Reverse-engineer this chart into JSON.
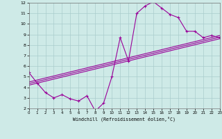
{
  "xlabel": "Windchill (Refroidissement éolien,°C)",
  "background_color": "#ceeae7",
  "grid_color": "#aacccc",
  "line_color": "#990099",
  "xlim": [
    0,
    23
  ],
  "ylim": [
    2,
    12
  ],
  "xticks": [
    0,
    1,
    2,
    3,
    4,
    5,
    6,
    7,
    8,
    9,
    10,
    11,
    12,
    13,
    14,
    15,
    16,
    17,
    18,
    19,
    20,
    21,
    22,
    23
  ],
  "yticks": [
    2,
    3,
    4,
    5,
    6,
    7,
    8,
    9,
    10,
    11,
    12
  ],
  "main_x": [
    0,
    1,
    2,
    3,
    4,
    5,
    6,
    7,
    8,
    9,
    10,
    11,
    12,
    13,
    14,
    15,
    16,
    17,
    18,
    19,
    20,
    21,
    22,
    23
  ],
  "main_y": [
    5.4,
    4.4,
    3.5,
    3.0,
    3.3,
    2.9,
    2.7,
    3.2,
    1.75,
    2.5,
    5.0,
    8.7,
    6.5,
    11.0,
    11.7,
    12.1,
    11.5,
    10.9,
    10.6,
    9.3,
    9.3,
    8.7,
    8.9,
    8.7
  ],
  "line1_x": [
    0,
    23
  ],
  "line1_y": [
    4.2,
    8.6
  ],
  "line2_x": [
    0,
    23
  ],
  "line2_y": [
    4.5,
    8.9
  ],
  "line3_x": [
    0,
    23
  ],
  "line3_y": [
    4.35,
    8.75
  ]
}
